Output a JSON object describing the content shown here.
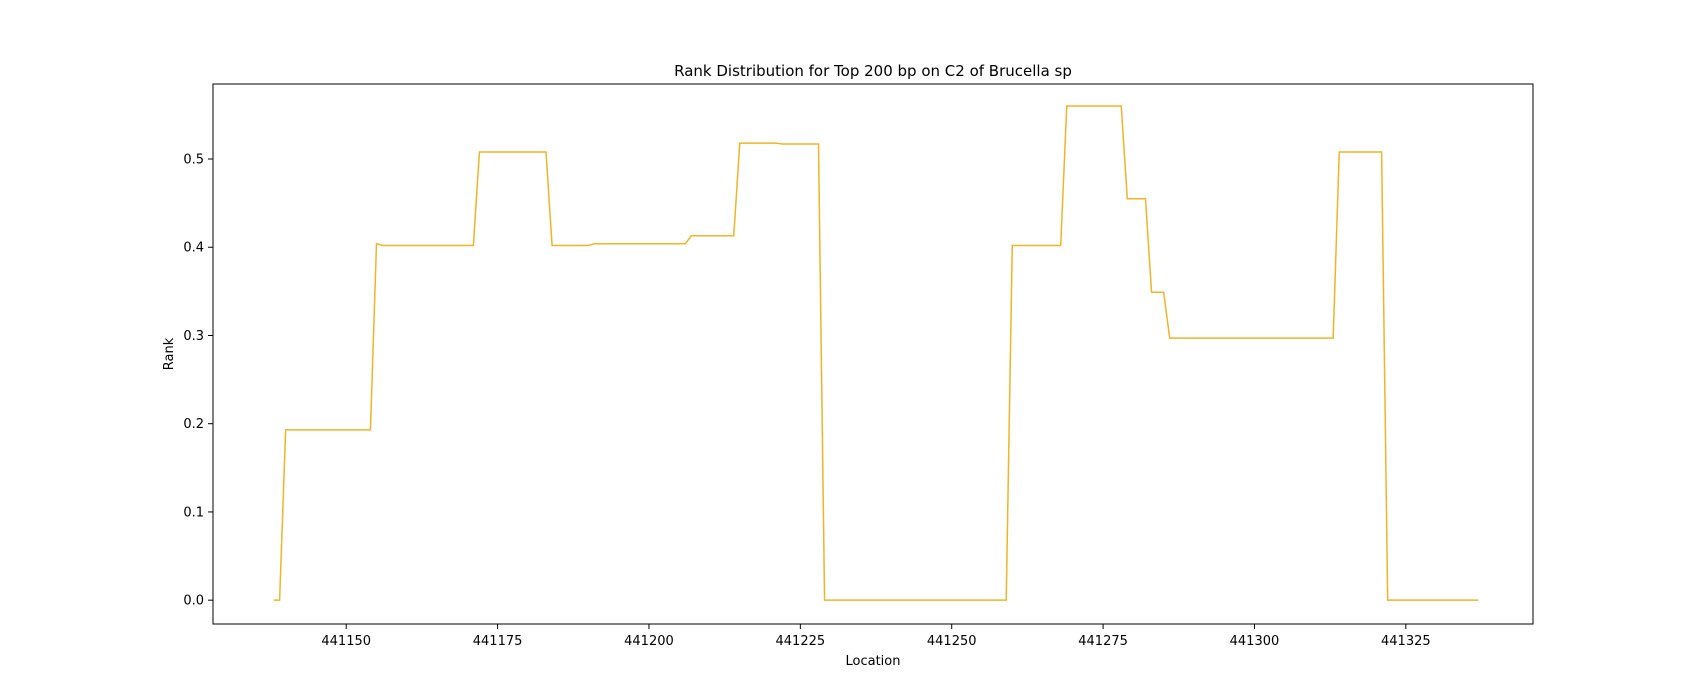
{
  "chart_data": {
    "type": "line",
    "title": "Rank Distribution for Top 200 bp on C2 of Brucella sp",
    "xlabel": "Location",
    "ylabel": "Rank",
    "xlim": [
      441128,
      441346
    ],
    "ylim": [
      -0.027,
      0.585
    ],
    "xticks": [
      441150,
      441175,
      441200,
      441225,
      441250,
      441275,
      441300,
      441325
    ],
    "yticks": [
      0.0,
      0.1,
      0.2,
      0.3,
      0.4,
      0.5
    ],
    "ytick_labels": [
      "0.0",
      "0.1",
      "0.2",
      "0.3",
      "0.4",
      "0.5"
    ],
    "grid": false,
    "line_color": "#f0b429",
    "series": [
      {
        "x": [
          441138,
          441139,
          441140,
          441154,
          441155,
          441156,
          441171,
          441172,
          441183,
          441184,
          441190,
          441191,
          441206,
          441207,
          441214,
          441215,
          441221,
          441222,
          441228,
          441229,
          441259,
          441260,
          441268,
          441269,
          441278,
          441279,
          441282,
          441283,
          441285,
          441286,
          441313,
          441314,
          441321,
          441322,
          441337
        ],
        "y": [
          0.0,
          0.0,
          0.193,
          0.193,
          0.404,
          0.402,
          0.402,
          0.508,
          0.508,
          0.402,
          0.402,
          0.404,
          0.404,
          0.413,
          0.413,
          0.518,
          0.518,
          0.517,
          0.517,
          0.0,
          0.0,
          0.402,
          0.402,
          0.56,
          0.56,
          0.455,
          0.455,
          0.349,
          0.349,
          0.297,
          0.297,
          0.508,
          0.508,
          0.0,
          0.0
        ]
      }
    ]
  }
}
